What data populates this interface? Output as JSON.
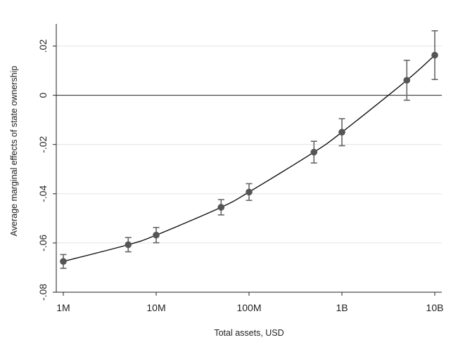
{
  "chart_data": {
    "type": "line",
    "title": "",
    "xlabel": "Total assets, USD",
    "ylabel": "Average marginal effects of state ownership",
    "x_scale": "log",
    "x_ticks": [
      {
        "value": 1000000,
        "label": "1M"
      },
      {
        "value": 10000000,
        "label": "10M"
      },
      {
        "value": 100000000,
        "label": "100M"
      },
      {
        "value": 1000000000,
        "label": "1B"
      },
      {
        "value": 10000000000,
        "label": "10B"
      }
    ],
    "y_ticks": [
      {
        "value": 0.02,
        "label": ".02"
      },
      {
        "value": 0,
        "label": "0"
      },
      {
        "value": -0.02,
        "label": "-.02"
      },
      {
        "value": -0.04,
        "label": "-.04"
      },
      {
        "value": -0.06,
        "label": "-.06"
      },
      {
        "value": -0.08,
        "label": "-.08"
      }
    ],
    "ylim": [
      -0.08,
      0.029
    ],
    "grid": true,
    "reference_line_y": 0,
    "series": [
      {
        "x": [
          1000000,
          5000000,
          10000000,
          50000000,
          100000000,
          500000000,
          1000000000,
          5000000000,
          10000000000
        ],
        "y": [
          -0.0675,
          -0.0607,
          -0.0568,
          -0.0455,
          -0.0393,
          -0.0231,
          -0.015,
          0.0061,
          0.0163
        ],
        "ci_low": [
          -0.0703,
          -0.0636,
          -0.0599,
          -0.0486,
          -0.0427,
          -0.0275,
          -0.0205,
          -0.002,
          0.0064
        ],
        "ci_high": [
          -0.0647,
          -0.0578,
          -0.0537,
          -0.0424,
          -0.0359,
          -0.0187,
          -0.0095,
          0.0142,
          0.0262
        ]
      }
    ],
    "colors": {
      "line": "#111111",
      "marker": "#555555",
      "errorbar": "#666666",
      "grid": "#e4e4e4",
      "axis": "#222222"
    }
  }
}
